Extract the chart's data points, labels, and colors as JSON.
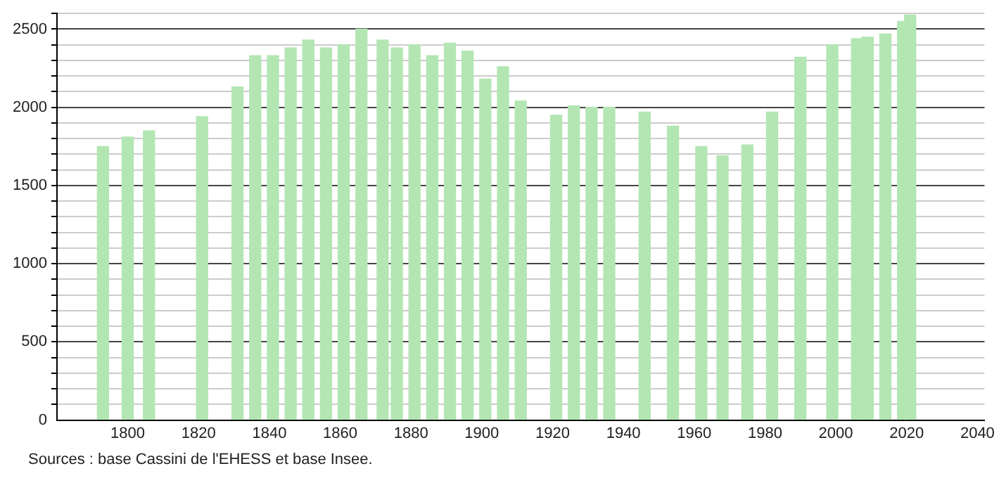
{
  "chart_data": {
    "type": "bar",
    "x": [
      1793,
      1800,
      1806,
      1821,
      1831,
      1836,
      1841,
      1846,
      1851,
      1856,
      1861,
      1866,
      1872,
      1876,
      1881,
      1886,
      1891,
      1896,
      1901,
      1906,
      1911,
      1921,
      1926,
      1931,
      1936,
      1946,
      1954,
      1962,
      1968,
      1975,
      1982,
      1990,
      1999,
      2006,
      2009,
      2014,
      2019,
      2021
    ],
    "values": [
      1750,
      1810,
      1850,
      1940,
      2130,
      2330,
      2330,
      2380,
      2430,
      2380,
      2400,
      2500,
      2430,
      2380,
      2400,
      2330,
      2410,
      2360,
      2180,
      2260,
      2040,
      1950,
      2010,
      2000,
      2000,
      1970,
      1880,
      1750,
      1690,
      1760,
      1970,
      2320,
      2400,
      2440,
      2450,
      2470,
      2550,
      2590
    ],
    "color": "#b3e6b3",
    "xlim": [
      1780,
      2042
    ],
    "xticks": [
      1800,
      1820,
      1840,
      1860,
      1880,
      1900,
      1920,
      1940,
      1960,
      1980,
      2000,
      2020,
      2040
    ],
    "ylim": [
      0,
      2600
    ],
    "yticks": [
      0,
      {
        "value": 100,
        "label": null
      },
      {
        "value": 200,
        "label": null
      },
      {
        "value": 300,
        "label": null
      },
      {
        "value": 400,
        "label": null
      },
      500,
      {
        "value": 600,
        "label": null
      },
      {
        "value": 700,
        "label": null
      },
      {
        "value": 800,
        "label": null
      },
      {
        "value": 900,
        "label": null
      },
      1000,
      {
        "value": 1100,
        "label": null
      },
      {
        "value": 1200,
        "label": null
      },
      {
        "value": 1300,
        "label": null
      },
      {
        "value": 1400,
        "label": null
      },
      1500,
      {
        "value": 1600,
        "label": null
      },
      {
        "value": 1700,
        "label": null
      },
      {
        "value": 1800,
        "label": null
      },
      {
        "value": 1900,
        "label": null
      },
      2000,
      {
        "value": 2100,
        "label": null
      },
      {
        "value": 2200,
        "label": null
      },
      {
        "value": 2300,
        "label": null
      },
      {
        "value": 2400,
        "label": null
      },
      2500,
      {
        "value": 2600,
        "label": null
      }
    ],
    "grid": "y",
    "annotations": [
      "Sources : base Cassini de l'EHESS et base Insee."
    ]
  }
}
